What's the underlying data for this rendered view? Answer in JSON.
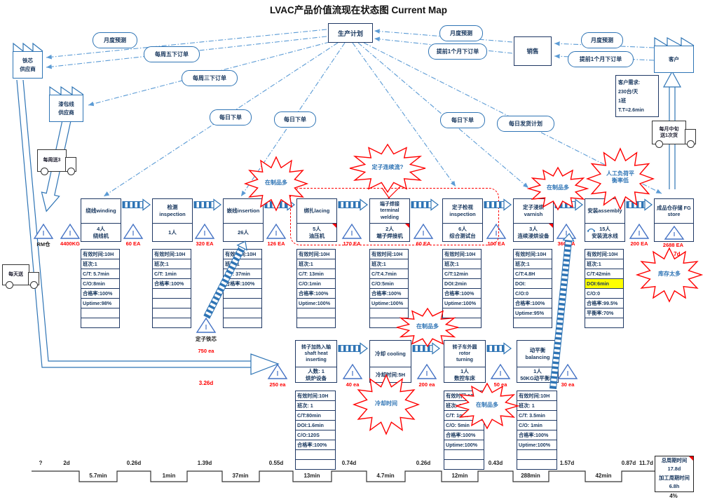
{
  "title": "LVAC产品价值流现在状态图 Current Map",
  "planning": {
    "label": "生产计划"
  },
  "sales": {
    "label": "销售"
  },
  "factories": [
    {
      "lines": [
        "铁芯",
        "供应商"
      ]
    },
    {
      "lines": [
        "漆包线",
        "供应商"
      ]
    },
    {
      "lines": [
        "客户"
      ]
    }
  ],
  "customer_demand": {
    "lines": [
      "客户需求:",
      "230台/天",
      "1班",
      "T.T=2.6min"
    ]
  },
  "info_ovals": [
    "月度预测",
    "每周五下订单",
    "每周三下订单",
    "每日下单",
    "每日下单",
    "月度预测",
    "提前1个月下订单",
    "每日下单",
    "每日发货计划",
    "月度预测",
    "提前1个月下订单"
  ],
  "trucks": [
    {
      "lines": [
        "每周送3"
      ]
    },
    {
      "lines": [
        "每天送"
      ]
    },
    {
      "lines": [
        "每月中旬",
        "送1次货"
      ]
    }
  ],
  "processes_row1": [
    {
      "title": [
        "绕线winding"
      ],
      "sub": [
        "4人",
        "绕线机"
      ],
      "rows": [
        "有效时间:10H",
        "班次:1",
        "C/T: 5.7min",
        "C/O:8min",
        "合格率:100%",
        "Uptime:98%",
        "",
        ""
      ]
    },
    {
      "title": [
        "检测",
        "inspection"
      ],
      "sub": [
        "1人"
      ],
      "rows": [
        "有效时间:10H",
        "班次:1",
        "C/T: 1min",
        "合格率:100%",
        "",
        "",
        "",
        ""
      ]
    },
    {
      "title": [
        "嵌线insertion"
      ],
      "sub": [
        "26人"
      ],
      "rows": [
        "有效时间:10H",
        "班次:1",
        "C/T: 37min",
        "合格率:100%",
        "",
        "",
        "",
        ""
      ]
    },
    {
      "title": [
        "绑扎lacing"
      ],
      "sub": [
        "5人",
        "油压机"
      ],
      "rows": [
        "有效时间:10H",
        "班次:1",
        "C/T: 13min",
        "C/O:1min",
        "合格率:100%",
        "Uptime:100%",
        "",
        ""
      ]
    },
    {
      "title": [
        "端子焊接",
        "terminal",
        "welding"
      ],
      "sub": [
        "2人",
        "端子焊接机"
      ],
      "rows": [
        "有效时间:10H",
        "班次:1",
        "C/T:4.7min",
        "C/O:5min",
        "合格率:100%",
        "Uptime:100%",
        "",
        ""
      ]
    },
    {
      "title": [
        "定子检视",
        "inspection"
      ],
      "sub": [
        "6人",
        "综合测试台"
      ],
      "rows": [
        "有效时间:10H",
        "班次:1",
        "C/T:12min",
        "DOI:2min",
        "合格率:100%",
        "Uptime:100%",
        "",
        ""
      ]
    },
    {
      "title": [
        "定子浸烘",
        "varnish"
      ],
      "sub": [
        "3人",
        "连续浸烘设备"
      ],
      "rows": [
        "有效时间:10H",
        "班次:1",
        "C/T:4.8H",
        "DOI:",
        "C/O:0",
        "合格率:100%",
        "Uptime:95%",
        ""
      ]
    },
    {
      "title": [
        "安装assembly"
      ],
      "sub": [
        "15人",
        "安装流水线"
      ],
      "rows": [
        "有效时间:10H",
        "班次:1",
        "C/T:42min",
        "DOI:6min",
        "C/O:0",
        "合格率:99.5%",
        "平衡率:70%",
        ""
      ],
      "highlight_row": 3,
      "operator_icon": true
    }
  ],
  "fg_store": {
    "title": [
      "成品仓存储 FG",
      "store"
    ],
    "qty": "2688 EA",
    "days": "11.7d"
  },
  "processes_row2": [
    {
      "title": [
        "转子加热入轴",
        "shaft heat",
        "inserting"
      ],
      "sub": [
        "人数: 1",
        "烘炉设备"
      ],
      "rows": [
        "有效时间:10H",
        "班次: 1",
        "C/T:80min",
        "DOI:1.6min",
        "C/O:120S",
        "合格率:100%",
        "",
        ""
      ]
    },
    {
      "title": [
        "冷却 cooling"
      ],
      "sub": [
        "冷却时间:5H"
      ],
      "rows": []
    },
    {
      "title": [
        "转子车外圆",
        "rotor",
        "turning"
      ],
      "sub": [
        "1人",
        "数控车床"
      ],
      "rows": [
        "有效时间:10H",
        "班次: 1",
        "C/T: 1min",
        "C/O: 5min",
        "合格率:100%",
        "Uptime:100%",
        "",
        ""
      ]
    },
    {
      "title": [
        "动平衡",
        "balancing"
      ],
      "sub": [
        "1人",
        "50KG动平衡机"
      ],
      "rows": [
        "有效时间:10H",
        "班次: 1",
        "C/T: 3.5min",
        "C/O: 1min",
        "合格率:100%",
        "Uptime:100%",
        "",
        ""
      ]
    }
  ],
  "inventories_row1": [
    {
      "label": "RM仓",
      "red": false
    },
    {
      "label": "4400KG",
      "red": true
    },
    {
      "label": "60 EA",
      "red": true
    },
    {
      "label": "320 EA",
      "red": true
    },
    {
      "label": "126 EA",
      "red": true
    },
    {
      "label": "170 EA",
      "red": true
    },
    {
      "label": "60 EA",
      "red": true
    },
    {
      "label": "100 EA",
      "red": true
    },
    {
      "label": "360 EA",
      "red": true
    },
    {
      "label": "200 EA",
      "red": true
    }
  ],
  "inventories_row2": [
    {
      "label": "250 ea",
      "red": true
    },
    {
      "label": "40 ea",
      "red": true
    },
    {
      "label": "200 ea",
      "red": true
    },
    {
      "label": "50 ea",
      "red": true
    },
    {
      "label": "30 ea",
      "red": true
    }
  ],
  "stator_core": {
    "label": "定子铁芯",
    "qty": "750 ea",
    "lead": "3.26d"
  },
  "kaizen_bursts": [
    {
      "lines": [
        "在制品多"
      ]
    },
    {
      "lines": [
        "定子连续流?"
      ]
    },
    {
      "lines": [
        "在制品多"
      ]
    },
    {
      "lines": [
        "人工负荷平",
        "衡率低"
      ]
    },
    {
      "lines": [
        "库存太多"
      ]
    },
    {
      "lines": [
        "在制品多"
      ]
    },
    {
      "lines": [
        "冷却时间"
      ]
    },
    {
      "lines": [
        "在制品多"
      ]
    }
  ],
  "timeline": {
    "top": [
      {
        "t": "?",
        "red": false
      },
      {
        "t": "2d",
        "red": true
      },
      {
        "t": "0.26d",
        "red": false
      },
      {
        "t": "1.39d",
        "red": false
      },
      {
        "t": "0.55d",
        "red": false
      },
      {
        "t": "0.74d",
        "red": false
      },
      {
        "t": "0.26d",
        "red": false
      },
      {
        "t": "0.43d",
        "red": false
      },
      {
        "t": "1.57d",
        "red": false
      },
      {
        "t": "0.87d",
        "red": false
      },
      {
        "t": "11.7d",
        "red": false
      }
    ],
    "bottom": [
      "5.7min",
      "1min",
      "37min",
      "13min",
      "4.7min",
      "12min",
      "288min",
      "42min"
    ]
  },
  "summary": {
    "rows": [
      "总周期时间",
      "17.8d",
      "加工周期时间",
      "6.8h"
    ],
    "ratio": "4%"
  },
  "colors": {
    "accent": "#2E74B5",
    "line_blue": "#5B9BD5",
    "text": "#17365D",
    "red": "#FF0000",
    "highlight": "#FFFF00"
  }
}
